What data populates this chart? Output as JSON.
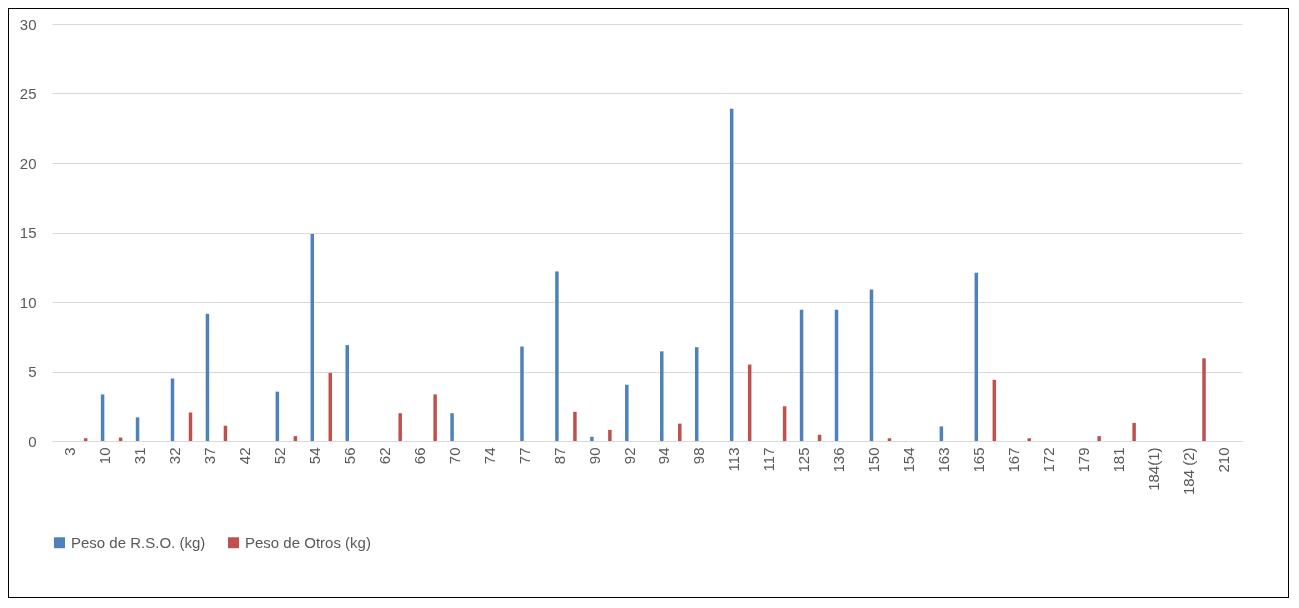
{
  "chart_data": {
    "type": "bar",
    "categories": [
      "3",
      "10",
      "31",
      "32",
      "37",
      "42",
      "52",
      "54",
      "56",
      "62",
      "66",
      "70",
      "74",
      "77",
      "87",
      "90",
      "92",
      "94",
      "98",
      "113",
      "117",
      "125",
      "136",
      "150",
      "154",
      "163",
      "165",
      "167",
      "172",
      "179",
      "181",
      "184(1)",
      "184 (2)",
      "210"
    ],
    "series": [
      {
        "name": "Peso de R.S.O. (kg)",
        "color": "#4f81bd",
        "values": [
          0,
          3.35,
          1.7,
          4.5,
          9.15,
          0,
          3.55,
          14.9,
          6.9,
          0,
          0,
          2.0,
          0,
          6.8,
          12.2,
          0.3,
          4.05,
          6.45,
          6.75,
          23.9,
          0,
          9.45,
          9.45,
          10.9,
          0,
          1.05,
          12.1,
          0,
          0,
          0,
          0,
          0,
          0,
          0
        ]
      },
      {
        "name": "Peso de Otros (kg)",
        "color": "#c0504d",
        "values": [
          0.2,
          0.25,
          0,
          2.05,
          1.1,
          0,
          0.35,
          4.9,
          0,
          2.0,
          3.35,
          0,
          0,
          0,
          2.1,
          0.8,
          0,
          1.25,
          0,
          5.5,
          2.5,
          0.45,
          0,
          0.2,
          0,
          0,
          4.4,
          0.2,
          0,
          0.35,
          1.3,
          0,
          5.95,
          0
        ]
      }
    ],
    "ylim": [
      0,
      30
    ],
    "yticks": [
      0,
      5,
      10,
      15,
      20,
      25,
      30
    ],
    "grid": "y",
    "legend": "bottom"
  }
}
